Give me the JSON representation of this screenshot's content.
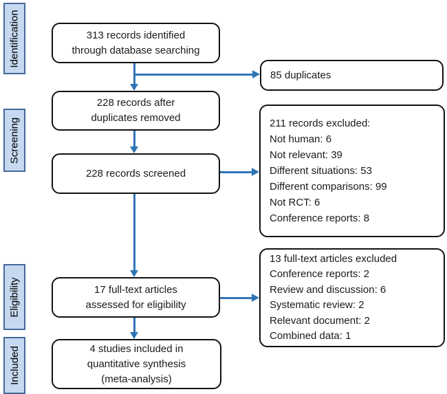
{
  "stages": {
    "identification": "Identification",
    "screening": "Screening",
    "eligibility": "Eligibility",
    "included": "Included"
  },
  "boxes": {
    "records_identified": {
      "lines": [
        "313 records identified",
        "through database searching"
      ]
    },
    "records_after_duplicates": {
      "lines": [
        "228 records after",
        "duplicates removed"
      ]
    },
    "records_screened": {
      "lines": [
        "228 records screened"
      ]
    },
    "fulltext_assessed": {
      "lines": [
        "17 full-text articles",
        "assessed for eligibility"
      ]
    },
    "studies_included": {
      "lines": [
        "4 studies included in",
        "quantitative synthesis",
        "(meta-analysis)"
      ]
    },
    "duplicates": {
      "lines": [
        "85 duplicates"
      ]
    },
    "records_excluded": {
      "lines": [
        "211 records excluded:",
        "Not human: 6",
        "Not relevant: 39",
        "Different situations: 53",
        "Different comparisons: 99",
        "Not RCT: 6",
        "Conference reports: 8"
      ]
    },
    "fulltext_excluded": {
      "lines": [
        "13 full-text articles excluded",
        "Conference reports: 2",
        "Review and discussion: 6",
        "Systematic review: 2",
        "Relevant document: 2",
        "Combined data: 1"
      ]
    }
  },
  "colors": {
    "arrow": "#2E75B6",
    "stage_fill": "#C6D9F0",
    "stage_border": "#44679B",
    "box_border": "#111111",
    "text": "#1A1A1A"
  }
}
